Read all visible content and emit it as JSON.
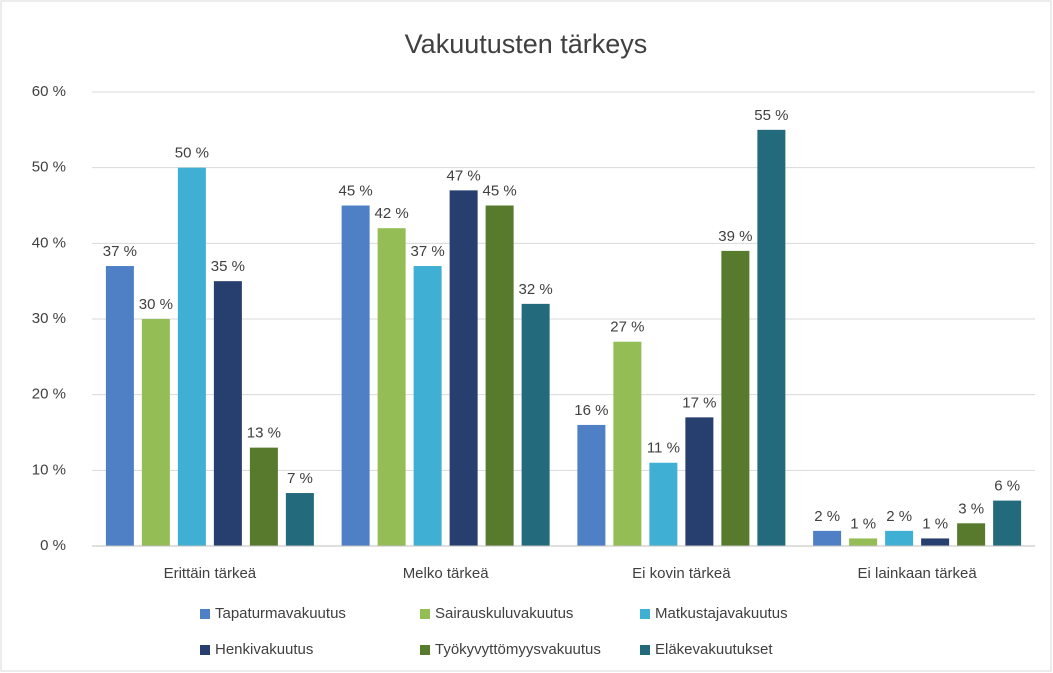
{
  "chart_data": {
    "type": "bar",
    "title": "Vakuutusten tärkeys",
    "categories": [
      "Erittäin tärkeä",
      "Melko tärkeä",
      "Ei kovin tärkeä",
      "Ei lainkaan tärkeä"
    ],
    "series": [
      {
        "name": "Tapaturmavakuutus",
        "color": "#4f7fc4",
        "values": [
          37,
          45,
          16,
          2
        ],
        "value_labels": [
          "37 %",
          "45 %",
          "16 %",
          "2 %"
        ]
      },
      {
        "name": "Sairauskuluvakuutus",
        "color": "#94bd55",
        "values": [
          30,
          42,
          27,
          1
        ],
        "value_labels": [
          "30 %",
          "42 %",
          "27 %",
          "1 %"
        ]
      },
      {
        "name": "Matkustajavakuutus",
        "color": "#3fb0d3",
        "values": [
          50,
          37,
          11,
          2
        ],
        "value_labels": [
          "50 %",
          "37 %",
          "11 %",
          "2 %"
        ]
      },
      {
        "name": "Henkivakuutus",
        "color": "#263f6e",
        "values": [
          35,
          47,
          17,
          1
        ],
        "value_labels": [
          "35 %",
          "47 %",
          "17 %",
          "1 %"
        ]
      },
      {
        "name": "Työkyvyttömyysvakuutus",
        "color": "#577a2c",
        "values": [
          13,
          45,
          39,
          3
        ],
        "value_labels": [
          "13 %",
          "45 %",
          "39 %",
          "3 %"
        ]
      },
      {
        "name": "Eläkevakuutukset",
        "color": "#236a7c",
        "values": [
          7,
          32,
          55,
          6
        ],
        "value_labels": [
          "7 %",
          "32 %",
          "55 %",
          "6 %"
        ]
      }
    ],
    "ylim": [
      0,
      60
    ],
    "yticks": [
      {
        "value": 0,
        "label": "0 %"
      },
      {
        "value": 10,
        "label": "10 %"
      },
      {
        "value": 20,
        "label": "20 %"
      },
      {
        "value": 30,
        "label": "30 %"
      },
      {
        "value": 40,
        "label": "40 %"
      },
      {
        "value": 50,
        "label": "50 %"
      },
      {
        "value": 60,
        "label": "60 %"
      }
    ],
    "grid": true,
    "legend": "bottom"
  }
}
